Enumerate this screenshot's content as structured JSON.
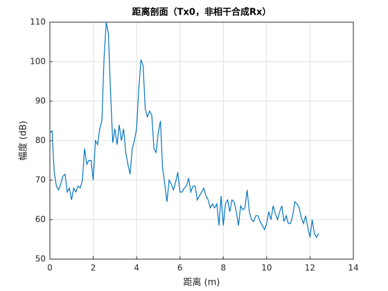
{
  "chart_data": {
    "type": "line",
    "title": "距离剖面（Tx0，非相干合成Rx）",
    "xlabel": "距离 (m)",
    "ylabel": "幅度 (dB)",
    "xlim": [
      0,
      14
    ],
    "xticks": [
      0,
      2,
      4,
      6,
      8,
      10,
      12,
      14
    ],
    "ylim": [
      50,
      110
    ],
    "yticks": [
      50,
      60,
      70,
      80,
      90,
      100,
      110
    ],
    "grid": true,
    "x": [
      0,
      0.1,
      0.2,
      0.3,
      0.4,
      0.5,
      0.6,
      0.7,
      0.8,
      0.9,
      1.0,
      1.1,
      1.2,
      1.3,
      1.4,
      1.5,
      1.6,
      1.7,
      1.8,
      1.9,
      2.0,
      2.1,
      2.2,
      2.3,
      2.4,
      2.5,
      2.6,
      2.7,
      2.8,
      2.9,
      3.0,
      3.1,
      3.2,
      3.3,
      3.4,
      3.5,
      3.6,
      3.7,
      3.8,
      3.9,
      4.0,
      4.1,
      4.2,
      4.3,
      4.4,
      4.5,
      4.6,
      4.7,
      4.8,
      4.9,
      5.0,
      5.1,
      5.2,
      5.3,
      5.4,
      5.5,
      5.6,
      5.7,
      5.8,
      5.9,
      6.0,
      6.1,
      6.2,
      6.3,
      6.4,
      6.5,
      6.6,
      6.7,
      6.8,
      6.9,
      7.0,
      7.1,
      7.2,
      7.3,
      7.4,
      7.5,
      7.6,
      7.7,
      7.8,
      7.9,
      8.0,
      8.1,
      8.2,
      8.3,
      8.4,
      8.5,
      8.6,
      8.7,
      8.8,
      8.9,
      9.0,
      9.1,
      9.2,
      9.3,
      9.4,
      9.5,
      9.6,
      9.7,
      9.8,
      9.9,
      10.0,
      10.1,
      10.2,
      10.3,
      10.4,
      10.5,
      10.6,
      10.7,
      10.8,
      10.9,
      11.0,
      11.1,
      11.2,
      11.3,
      11.4,
      11.5,
      11.6,
      11.7,
      11.8,
      11.9,
      12.0,
      12.1,
      12.2,
      12.3,
      12.4
    ],
    "series": [
      {
        "name": "Rx",
        "color": "#0072BD",
        "values": [
          82,
          82.5,
          72,
          68.5,
          67.5,
          69,
          71,
          71.5,
          67,
          68,
          65,
          68,
          67,
          68.5,
          68,
          70,
          78,
          74,
          75,
          75,
          70,
          80,
          79,
          83,
          85,
          101,
          110,
          107,
          92,
          79.5,
          83,
          79,
          84,
          80,
          83,
          77,
          74,
          71.5,
          78,
          80,
          83,
          93,
          100.5,
          99,
          88,
          86,
          87.5,
          86.5,
          78,
          77,
          82,
          85,
          73,
          69,
          64.5,
          70,
          69,
          67.5,
          69.5,
          72,
          67,
          67,
          68,
          68.5,
          70.5,
          67,
          68.5,
          68.5,
          65,
          66,
          67,
          68,
          66,
          65,
          63,
          64,
          63,
          64,
          58.5,
          66,
          58.5,
          64,
          65,
          62,
          65,
          64.5,
          62,
          58.5,
          63.5,
          62.5,
          63,
          67.5,
          62,
          60,
          59.5,
          61,
          61,
          59.5,
          58.5,
          57.5,
          59,
          62,
          60,
          63.5,
          61.5,
          60,
          62,
          63.5,
          59.5,
          61,
          59,
          59,
          61,
          64.5,
          64,
          63,
          60.5,
          59,
          61,
          58,
          55.5,
          60,
          56.5,
          55.5,
          56.5
        ]
      }
    ]
  }
}
